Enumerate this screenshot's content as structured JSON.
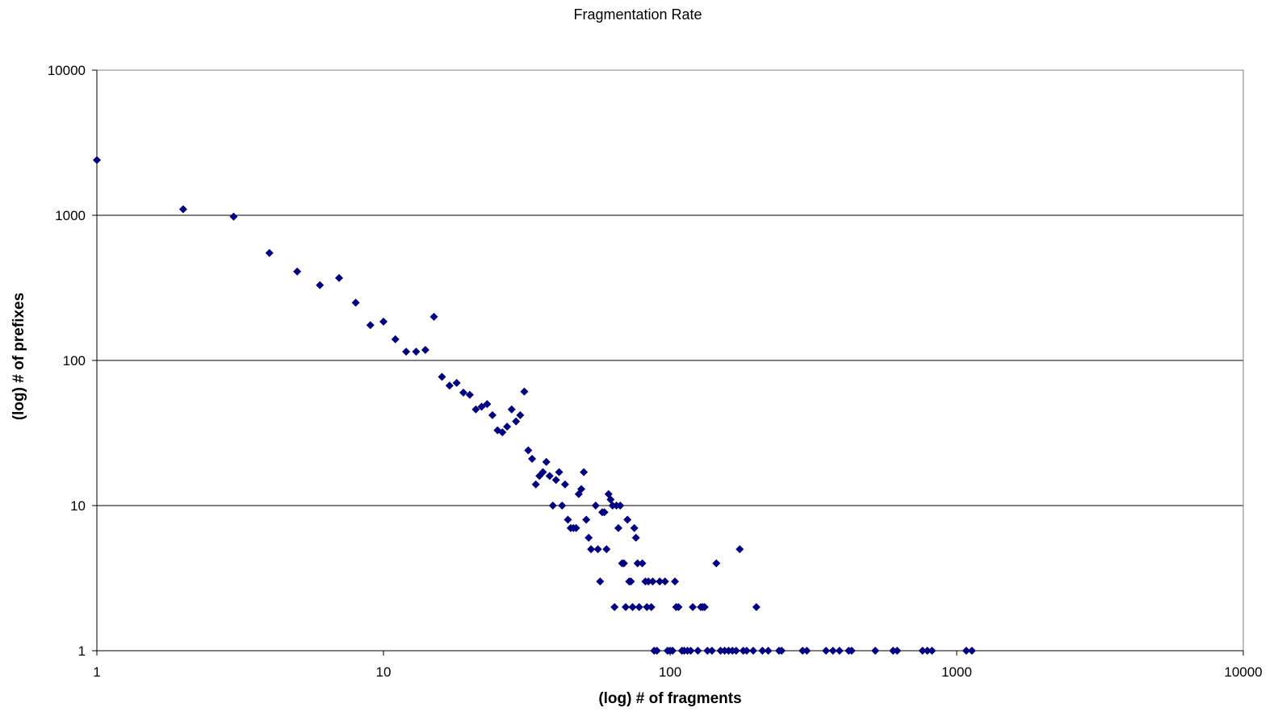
{
  "chart_data": {
    "type": "scatter",
    "title": "Fragmentation Rate",
    "xlabel": "(log) # of fragments",
    "ylabel": "(log) # of prefixes",
    "x_scale": "log",
    "y_scale": "log",
    "xlim": [
      1,
      10000
    ],
    "ylim": [
      1,
      10000
    ],
    "x_ticks": [
      "1",
      "10",
      "100",
      "1000",
      "10000"
    ],
    "y_ticks": [
      "1",
      "10",
      "100",
      "1000",
      "10000"
    ],
    "grid": "horizontal",
    "legend": "none",
    "marker": "diamond",
    "color": "#000080",
    "series": [
      {
        "points": [
          [
            1,
            2400
          ],
          [
            2,
            1100
          ],
          [
            3,
            980
          ],
          [
            4,
            550
          ],
          [
            5,
            410
          ],
          [
            6,
            330
          ],
          [
            7,
            370
          ],
          [
            8,
            250
          ],
          [
            9,
            175
          ],
          [
            10,
            185
          ],
          [
            11,
            140
          ],
          [
            12,
            115
          ],
          [
            13,
            115
          ],
          [
            14,
            118
          ],
          [
            15,
            200
          ],
          [
            16,
            77
          ],
          [
            17,
            67
          ],
          [
            18,
            70
          ],
          [
            19,
            60
          ],
          [
            20,
            58
          ],
          [
            21,
            46
          ],
          [
            22,
            48
          ],
          [
            23,
            50
          ],
          [
            24,
            42
          ],
          [
            25,
            33
          ],
          [
            26,
            32
          ],
          [
            27,
            35
          ],
          [
            28,
            46
          ],
          [
            29,
            38
          ],
          [
            30,
            42
          ],
          [
            31,
            61
          ],
          [
            32,
            24
          ],
          [
            33,
            21
          ],
          [
            34,
            14
          ],
          [
            35,
            16
          ],
          [
            36,
            17
          ],
          [
            37,
            20
          ],
          [
            38,
            16
          ],
          [
            39,
            10
          ],
          [
            40,
            15
          ],
          [
            41,
            17
          ],
          [
            42,
            10
          ],
          [
            43,
            14
          ],
          [
            44,
            8
          ],
          [
            45,
            7
          ],
          [
            46,
            7
          ],
          [
            47,
            7
          ],
          [
            48,
            12
          ],
          [
            49,
            13
          ],
          [
            50,
            17
          ],
          [
            51,
            8
          ],
          [
            52,
            6
          ],
          [
            53,
            5
          ],
          [
            55,
            10
          ],
          [
            56,
            5
          ],
          [
            57,
            3
          ],
          [
            58,
            9
          ],
          [
            59,
            9
          ],
          [
            60,
            5
          ],
          [
            61,
            12
          ],
          [
            62,
            11
          ],
          [
            63,
            10
          ],
          [
            64,
            2
          ],
          [
            65,
            10
          ],
          [
            66,
            7
          ],
          [
            67,
            10
          ],
          [
            68,
            4
          ],
          [
            69,
            4
          ],
          [
            70,
            2
          ],
          [
            71,
            8
          ],
          [
            72,
            3
          ],
          [
            73,
            3
          ],
          [
            74,
            2
          ],
          [
            75,
            7
          ],
          [
            76,
            6
          ],
          [
            77,
            4
          ],
          [
            78,
            2
          ],
          [
            80,
            4
          ],
          [
            82,
            3
          ],
          [
            83,
            2
          ],
          [
            84,
            3
          ],
          [
            86,
            2
          ],
          [
            87,
            3
          ],
          [
            88,
            1
          ],
          [
            90,
            1
          ],
          [
            92,
            3
          ],
          [
            96,
            3
          ],
          [
            98,
            1
          ],
          [
            100,
            1
          ],
          [
            102,
            1
          ],
          [
            104,
            3
          ],
          [
            105,
            2
          ],
          [
            107,
            2
          ],
          [
            110,
            1
          ],
          [
            112,
            1
          ],
          [
            115,
            1
          ],
          [
            118,
            1
          ],
          [
            120,
            2
          ],
          [
            125,
            1
          ],
          [
            128,
            2
          ],
          [
            130,
            2
          ],
          [
            132,
            2
          ],
          [
            135,
            1
          ],
          [
            140,
            1
          ],
          [
            145,
            4
          ],
          [
            150,
            1
          ],
          [
            155,
            1
          ],
          [
            160,
            1
          ],
          [
            165,
            1
          ],
          [
            170,
            1
          ],
          [
            175,
            5
          ],
          [
            180,
            1
          ],
          [
            185,
            1
          ],
          [
            195,
            1
          ],
          [
            200,
            2
          ],
          [
            210,
            1
          ],
          [
            220,
            1
          ],
          [
            240,
            1
          ],
          [
            245,
            1
          ],
          [
            290,
            1
          ],
          [
            300,
            1
          ],
          [
            350,
            1
          ],
          [
            370,
            1
          ],
          [
            390,
            1
          ],
          [
            420,
            1
          ],
          [
            430,
            1
          ],
          [
            520,
            1
          ],
          [
            600,
            1
          ],
          [
            620,
            1
          ],
          [
            760,
            1
          ],
          [
            790,
            1
          ],
          [
            820,
            1
          ],
          [
            1080,
            1
          ],
          [
            1130,
            1
          ]
        ]
      }
    ]
  }
}
